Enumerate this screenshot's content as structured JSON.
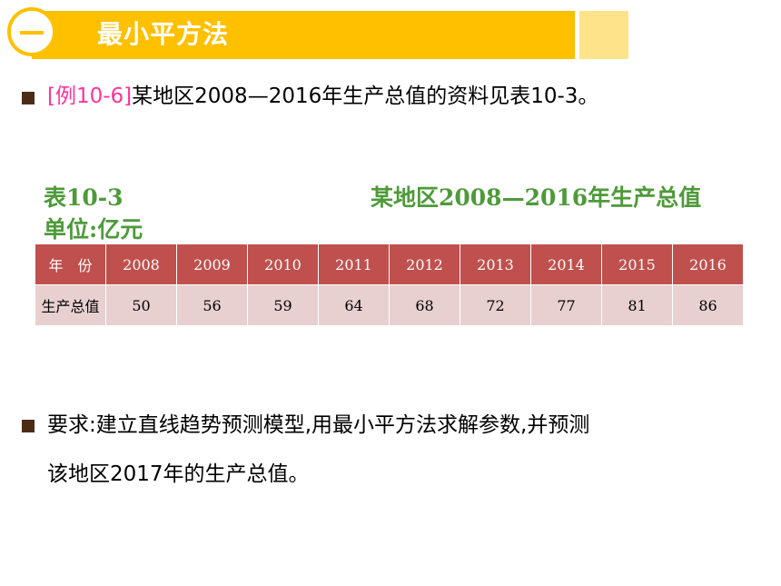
{
  "header": {
    "title": "最小平方法"
  },
  "example": {
    "ref": "[例10-6]",
    "text": "某地区2008—2016年生产总值的资料见表10-3。"
  },
  "table": {
    "caption_id": "表10-3",
    "caption_title": "某地区2008—2016年生产总值",
    "unit": "单位:亿元",
    "header_label": "年　份",
    "years": [
      "2008",
      "2009",
      "2010",
      "2011",
      "2012",
      "2013",
      "2014",
      "2015",
      "2016"
    ],
    "row_label": "生产总值",
    "values": [
      "50",
      "56",
      "59",
      "64",
      "68",
      "72",
      "77",
      "81",
      "86"
    ]
  },
  "requirement": {
    "line1": "要求:建立直线趋势预测模型,用最小平方法求解参数,并预测",
    "line2": "该地区2017年的生产总值。"
  },
  "colors": {
    "accent": "#ffc000",
    "accent_light": "#ffe38a",
    "bullet": "#4d2c17",
    "example_ref": "#ff3399",
    "caption": "#4e9a3a",
    "table_header": "#c0504d",
    "table_body": "#e8d0d0"
  }
}
